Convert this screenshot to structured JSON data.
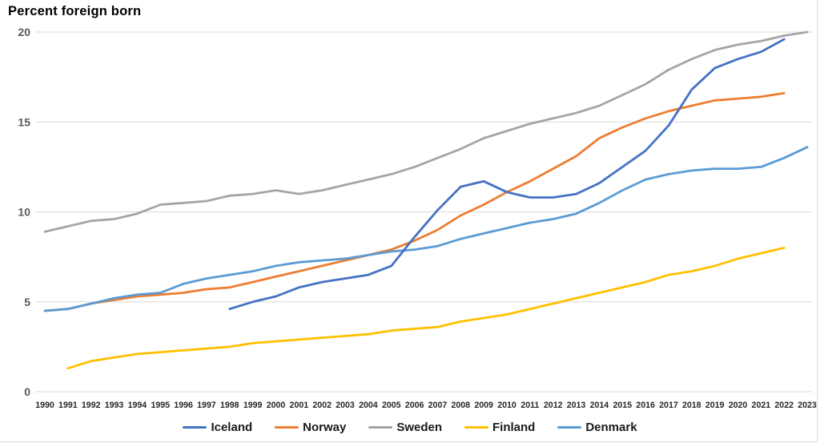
{
  "chart_data": {
    "type": "line",
    "title": "Percent foreign born",
    "xlabel": "",
    "ylabel": "",
    "x": [
      1990,
      1991,
      1992,
      1993,
      1994,
      1995,
      1996,
      1997,
      1998,
      1999,
      2000,
      2001,
      2002,
      2003,
      2004,
      2005,
      2006,
      2007,
      2008,
      2009,
      2010,
      2011,
      2012,
      2013,
      2014,
      2015,
      2016,
      2017,
      2018,
      2019,
      2020,
      2021,
      2022,
      2023
    ],
    "y_ticks": [
      0,
      5,
      10,
      15,
      20
    ],
    "ylim": [
      0,
      20
    ],
    "grid": "horizontal",
    "legend_position": "bottom-center",
    "series": [
      {
        "name": "Iceland",
        "color": "#4472C4",
        "start_year": 1998,
        "end_year": 2022,
        "values": [
          4.6,
          5.0,
          5.3,
          5.8,
          6.1,
          6.3,
          6.5,
          7.0,
          8.6,
          10.1,
          11.4,
          11.7,
          11.1,
          10.8,
          10.8,
          11.0,
          11.6,
          12.5,
          13.4,
          14.8,
          16.8,
          18.0,
          18.5,
          18.9,
          19.6
        ]
      },
      {
        "name": "Norway",
        "color": "#ED7D31",
        "start_year": 1990,
        "end_year": 2022,
        "values": [
          4.5,
          4.6,
          4.9,
          5.1,
          5.3,
          5.4,
          5.5,
          5.7,
          5.8,
          6.1,
          6.4,
          6.7,
          7.0,
          7.3,
          7.6,
          7.9,
          8.4,
          9.0,
          9.8,
          10.4,
          11.1,
          11.7,
          12.4,
          13.1,
          14.1,
          14.7,
          15.2,
          15.6,
          15.9,
          16.2,
          16.3,
          16.4,
          16.6
        ]
      },
      {
        "name": "Sweden",
        "color": "#A5A5A5",
        "start_year": 1990,
        "end_year": 2023,
        "values": [
          8.9,
          9.2,
          9.5,
          9.6,
          9.9,
          10.4,
          10.5,
          10.6,
          10.9,
          11.0,
          11.2,
          11.0,
          11.2,
          11.5,
          11.8,
          12.1,
          12.5,
          13.0,
          13.5,
          14.1,
          14.5,
          14.9,
          15.2,
          15.5,
          15.9,
          16.5,
          17.1,
          17.9,
          18.5,
          19.0,
          19.3,
          19.5,
          19.8,
          20.0
        ]
      },
      {
        "name": "Finland",
        "color": "#FFC000",
        "start_year": 1991,
        "end_year": 2022,
        "values": [
          1.3,
          1.7,
          1.9,
          2.1,
          2.2,
          2.3,
          2.4,
          2.5,
          2.7,
          2.8,
          2.9,
          3.0,
          3.1,
          3.2,
          3.4,
          3.5,
          3.6,
          3.9,
          4.1,
          4.3,
          4.6,
          4.9,
          5.2,
          5.5,
          5.8,
          6.1,
          6.5,
          6.7,
          7.0,
          7.4,
          7.7,
          8.0
        ]
      },
      {
        "name": "Denmark",
        "color": "#5B9BD5",
        "start_year": 1990,
        "end_year": 2023,
        "values": [
          4.5,
          4.6,
          4.9,
          5.2,
          5.4,
          5.5,
          6.0,
          6.3,
          6.5,
          6.7,
          7.0,
          7.2,
          7.3,
          7.4,
          7.6,
          7.8,
          7.9,
          8.1,
          8.5,
          8.8,
          9.1,
          9.4,
          9.6,
          9.9,
          10.5,
          11.2,
          11.8,
          12.1,
          12.3,
          12.4,
          12.4,
          12.5,
          13.0,
          13.6
        ]
      }
    ],
    "colors": {
      "gridline": "#D9D9D9",
      "y_tick_label": "#595959",
      "x_tick_label": "#262626",
      "legend_text": "#1a1a1a",
      "title": "#000000",
      "background": "#FFFFFF"
    }
  }
}
